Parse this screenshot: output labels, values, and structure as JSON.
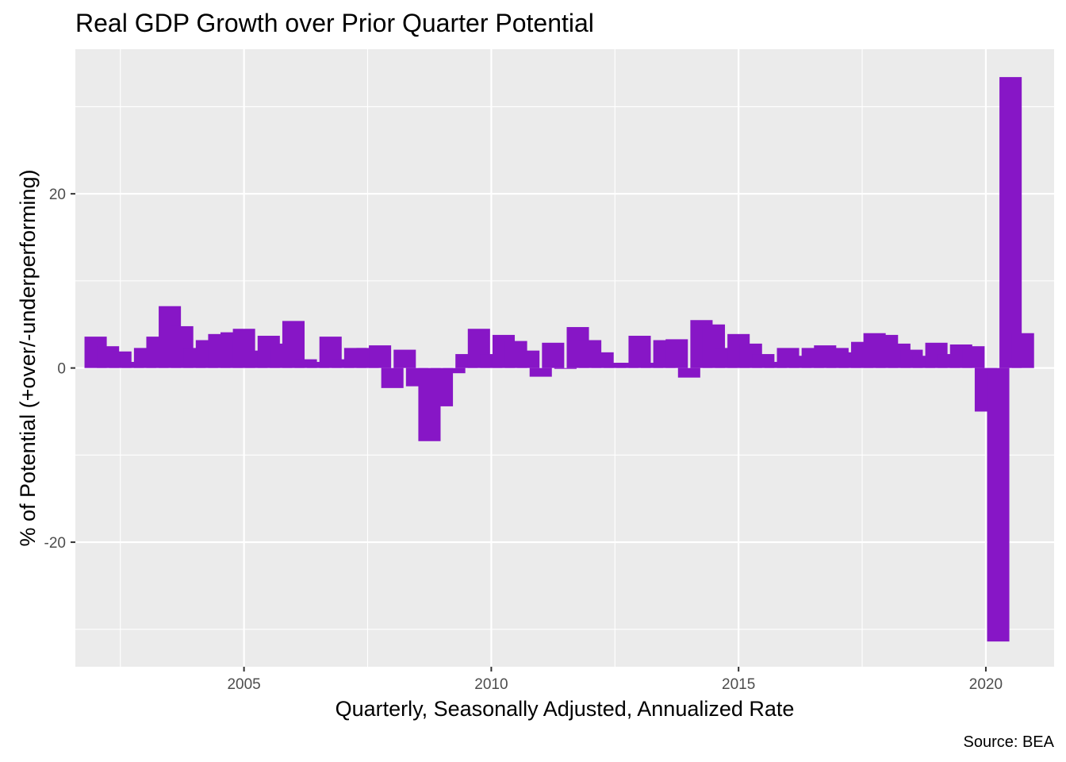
{
  "chart_data": {
    "type": "bar",
    "title": "Real GDP Growth over Prior Quarter Potential",
    "xlabel": "Quarterly, Seasonally Adjusted, Annualized Rate",
    "ylabel": "% of Potential (+over/-underperforming)",
    "caption": "Source: BEA",
    "xlim": [
      2001.59,
      2021.38
    ],
    "ylim": [
      -34.3,
      36.6
    ],
    "x_ticks": [
      {
        "value": 2005,
        "label": "2005"
      },
      {
        "value": 2010,
        "label": "2010"
      },
      {
        "value": 2015,
        "label": "2015"
      },
      {
        "value": 2020,
        "label": "2020"
      }
    ],
    "y_ticks": [
      {
        "value": -20,
        "label": "-20"
      },
      {
        "value": 0,
        "label": "0"
      },
      {
        "value": 20,
        "label": "20"
      }
    ],
    "x_minor": [
      2002.5,
      2007.5,
      2012.5,
      2017.5
    ],
    "y_minor": [
      -30,
      -10,
      10,
      30
    ],
    "panel_background": "#ebebeb",
    "grid_color": "#ffffff",
    "bar_color": "#8716c6",
    "grid": true,
    "legend": "none",
    "series": [
      {
        "x": [
          2002.0,
          2002.25,
          2002.5,
          2002.75,
          2003.0,
          2003.25,
          2003.5,
          2003.75,
          2004.0,
          2004.25,
          2004.5,
          2004.75,
          2005.0,
          2005.25,
          2005.5,
          2005.75,
          2006.0,
          2006.25,
          2006.5,
          2006.75,
          2007.0,
          2007.25,
          2007.5,
          2007.75,
          2008.0,
          2008.25,
          2008.5,
          2008.75,
          2009.0,
          2009.25,
          2009.5,
          2009.75,
          2010.0,
          2010.25,
          2010.5,
          2010.75,
          2011.0,
          2011.25,
          2011.5,
          2011.75,
          2012.0,
          2012.25,
          2012.5,
          2012.75,
          2013.0,
          2013.25,
          2013.5,
          2013.75,
          2014.0,
          2014.25,
          2014.5,
          2014.75,
          2015.0,
          2015.25,
          2015.5,
          2015.75,
          2016.0,
          2016.25,
          2016.5,
          2016.75,
          2017.0,
          2017.25,
          2017.5,
          2017.75,
          2018.0,
          2018.25,
          2018.5,
          2018.75,
          2019.0,
          2019.25,
          2019.5,
          2019.75,
          2020.0,
          2020.25,
          2020.5,
          2020.75
        ],
        "values": [
          3.6,
          2.5,
          1.9,
          0.7,
          2.3,
          3.6,
          7.1,
          4.8,
          2.3,
          3.2,
          3.9,
          4.1,
          4.5,
          2.0,
          3.7,
          2.8,
          5.4,
          1.0,
          0.7,
          3.6,
          1.0,
          2.3,
          2.3,
          2.6,
          -2.3,
          2.1,
          -2.1,
          -8.4,
          -4.4,
          -0.6,
          1.6,
          4.5,
          1.6,
          3.8,
          3.1,
          2.0,
          -1.0,
          2.9,
          -0.1,
          4.7,
          3.2,
          1.8,
          0.6,
          0.6,
          3.7,
          0.6,
          3.2,
          3.3,
          -1.1,
          5.5,
          5.0,
          2.3,
          3.9,
          2.8,
          1.6,
          0.7,
          2.3,
          1.4,
          2.3,
          2.6,
          2.3,
          1.8,
          3.0,
          4.0,
          3.8,
          2.8,
          2.1,
          1.4,
          2.9,
          1.6,
          2.7,
          2.5,
          -5.0,
          -31.4,
          33.4,
          4.0
        ]
      }
    ]
  }
}
